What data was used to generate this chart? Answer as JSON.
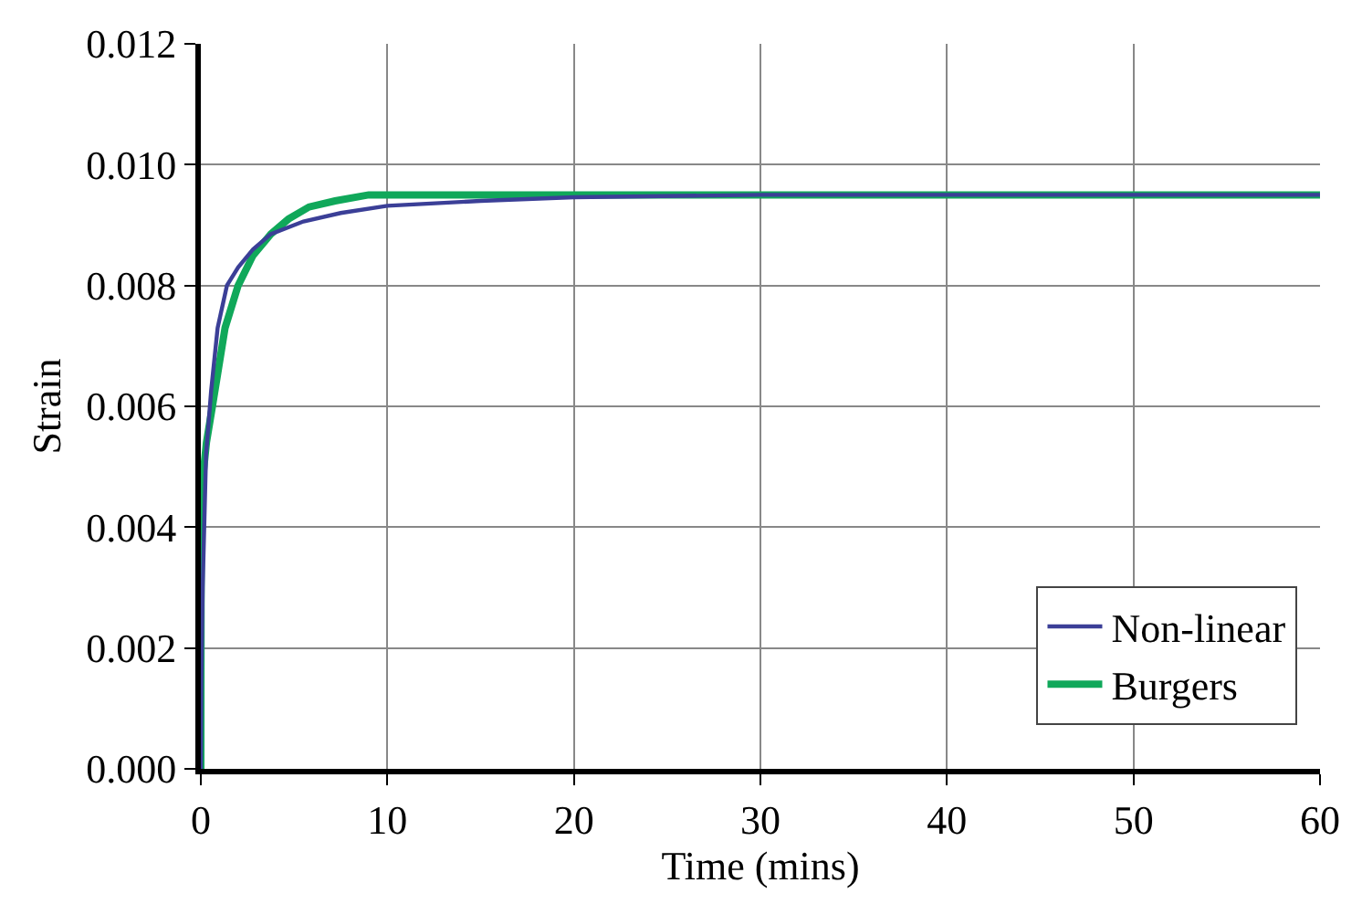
{
  "chart_data": {
    "type": "line",
    "xlabel": "Time (mins)",
    "ylabel": "Strain",
    "series": [
      {
        "name": "Non-linear",
        "color": "#3b3f97",
        "x": [
          0,
          0.03,
          0.1,
          0.28,
          0.55,
          0.9,
          1.4,
          2.0,
          2.8,
          3.75,
          5.5,
          7.5,
          10,
          15,
          20,
          30,
          40,
          50,
          60
        ],
        "values": [
          0,
          0.0015,
          0.003,
          0.0052,
          0.00625,
          0.0073,
          0.008,
          0.0083,
          0.0086,
          0.00885,
          0.00906,
          0.0092,
          0.00932,
          0.0094,
          0.00946,
          0.0095,
          0.0095,
          0.0095,
          0.0095
        ]
      },
      {
        "name": "Burgers",
        "color": "#10a85a",
        "x": [
          0,
          0.02,
          0.1,
          0.3,
          0.62,
          1.3,
          2.0,
          2.8,
          3.75,
          4.7,
          5.8,
          7.2,
          9,
          12,
          20,
          30,
          40,
          50,
          60
        ],
        "values": [
          0,
          0.0045,
          0.0048,
          0.0054,
          0.006,
          0.0073,
          0.008,
          0.0085,
          0.00885,
          0.0091,
          0.0093,
          0.0094,
          0.0095,
          0.0095,
          0.0095,
          0.0095,
          0.0095,
          0.0095,
          0.0095
        ]
      }
    ],
    "xlim": [
      0,
      60
    ],
    "xticks": [
      0,
      10,
      20,
      30,
      40,
      50,
      60
    ],
    "ylim": [
      0,
      0.012
    ],
    "yticks": [
      {
        "value": 0,
        "label": "0.000"
      },
      {
        "value": 0.002,
        "label": "0.002"
      },
      {
        "value": 0.004,
        "label": "0.004"
      },
      {
        "value": 0.006,
        "label": "0.006"
      },
      {
        "value": 0.008,
        "label": "0.008"
      },
      {
        "value": 0.01,
        "label": "0.010"
      },
      {
        "value": 0.012,
        "label": "0.012"
      }
    ],
    "grid": true,
    "legend": "bottom right",
    "marker": "none",
    "line_style": "solid"
  }
}
